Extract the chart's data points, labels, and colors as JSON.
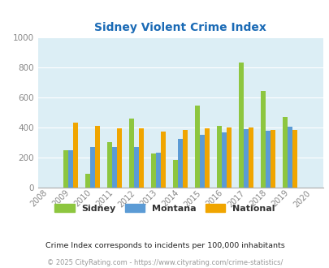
{
  "title": "Sidney Violent Crime Index",
  "years": [
    2008,
    2009,
    2010,
    2011,
    2012,
    2013,
    2014,
    2015,
    2016,
    2017,
    2018,
    2019,
    2020
  ],
  "sidney": [
    null,
    250,
    90,
    305,
    460,
    225,
    185,
    545,
    410,
    835,
    645,
    470,
    null
  ],
  "montana": [
    null,
    250,
    270,
    268,
    270,
    235,
    325,
    350,
    370,
    390,
    380,
    405,
    null
  ],
  "national": [
    null,
    432,
    410,
    397,
    397,
    375,
    382,
    397,
    403,
    398,
    385,
    383,
    null
  ],
  "color_sidney": "#8dc63f",
  "color_montana": "#5b9bd5",
  "color_national": "#f0a500",
  "background_color": "#dceef5",
  "ylim": [
    0,
    1000
  ],
  "yticks": [
    0,
    200,
    400,
    600,
    800,
    1000
  ],
  "legend_labels": [
    "Sidney",
    "Montana",
    "National"
  ],
  "footnote1": "Crime Index corresponds to incidents per 100,000 inhabitants",
  "footnote2": "© 2025 CityRating.com - https://www.cityrating.com/crime-statistics/"
}
